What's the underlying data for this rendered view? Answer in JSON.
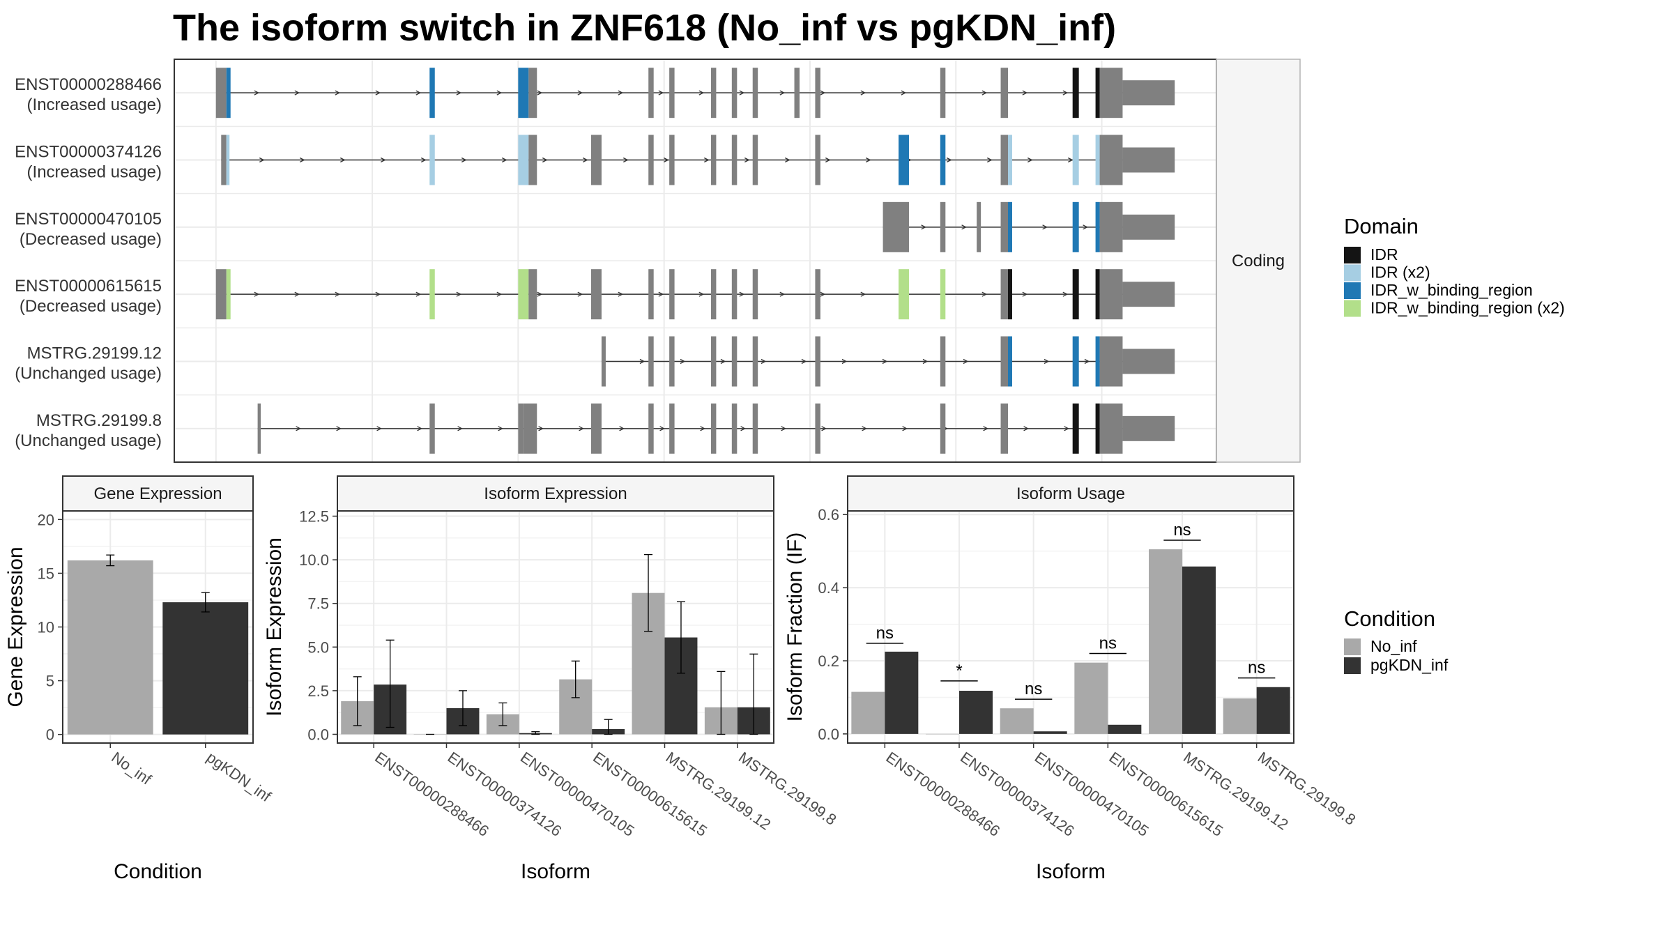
{
  "title": "The isoform switch in ZNF618 (No_inf vs pgKDN_inf)",
  "colors": {
    "exon": "#808080",
    "IDR": "#141414",
    "IDR (x2)": "#a6cee3",
    "IDR_w_binding_region": "#1f78b4",
    "IDR_w_binding_region (x2)": "#b2df8a",
    "No_inf": "#a9a9a9",
    "pgKDN_inf": "#333333",
    "grid": "#ebebeb",
    "panel_border": "#333333",
    "strip_fill": "#f5f5f5"
  },
  "structure": {
    "facet_label": "Coding",
    "legend_title": "Domain",
    "legend_items": [
      "IDR",
      "IDR (x2)",
      "IDR_w_binding_region",
      "IDR_w_binding_region (x2)"
    ],
    "x_range": [
      0,
      100
    ],
    "isoforms": [
      {
        "id": "ENST00000288466",
        "usage": "(Increased usage)",
        "span": [
          4,
          91
        ],
        "exons": [
          [
            4,
            5,
            "exon"
          ],
          [
            5,
            5.4,
            "IDR_w_binding_region"
          ],
          [
            24.5,
            25,
            "IDR_w_binding_region"
          ],
          [
            33,
            34,
            "IDR_w_binding_region"
          ],
          [
            34,
            34.8,
            "exon"
          ],
          [
            45.5,
            46,
            "exon"
          ],
          [
            47.5,
            48,
            "exon"
          ],
          [
            51.5,
            52,
            "exon"
          ],
          [
            53.5,
            54,
            "exon"
          ],
          [
            55.5,
            56,
            "exon"
          ],
          [
            59.5,
            60,
            "exon"
          ],
          [
            61.5,
            62,
            "exon"
          ],
          [
            73.5,
            74,
            "exon"
          ],
          [
            79.3,
            80,
            "exon"
          ],
          [
            86.2,
            86.8,
            "IDR"
          ],
          [
            88.4,
            88.8,
            "IDR"
          ],
          [
            88.8,
            91,
            "exon"
          ]
        ],
        "utr3": [
          91,
          96
        ]
      },
      {
        "id": "ENST00000374126",
        "usage": "(Increased usage)",
        "span": [
          4.5,
          91
        ],
        "exons": [
          [
            4.5,
            5,
            "exon"
          ],
          [
            5,
            5.3,
            "IDR (x2)"
          ],
          [
            24.5,
            25,
            "IDR (x2)"
          ],
          [
            33,
            34,
            "IDR (x2)"
          ],
          [
            34,
            34.8,
            "exon"
          ],
          [
            40,
            41,
            "exon"
          ],
          [
            45.5,
            46,
            "exon"
          ],
          [
            47.5,
            48,
            "exon"
          ],
          [
            51.5,
            52,
            "exon"
          ],
          [
            53.5,
            54,
            "exon"
          ],
          [
            55.5,
            56,
            "exon"
          ],
          [
            61.5,
            62,
            "exon"
          ],
          [
            69.5,
            70.5,
            "IDR_w_binding_region"
          ],
          [
            73.5,
            74,
            "IDR_w_binding_region"
          ],
          [
            79.3,
            80,
            "exon"
          ],
          [
            80,
            80.4,
            "IDR (x2)"
          ],
          [
            86.2,
            86.8,
            "IDR (x2)"
          ],
          [
            88.4,
            88.8,
            "IDR (x2)"
          ],
          [
            88.8,
            91,
            "exon"
          ]
        ],
        "utr3": [
          91,
          96
        ]
      },
      {
        "id": "ENST00000470105",
        "usage": "(Decreased usage)",
        "span": [
          68,
          91
        ],
        "exons": [
          [
            68,
            70.5,
            "exon"
          ],
          [
            73.5,
            74,
            "exon"
          ],
          [
            77,
            77.4,
            "exon"
          ],
          [
            79.3,
            80,
            "exon"
          ],
          [
            80,
            80.4,
            "IDR_w_binding_region"
          ],
          [
            86.2,
            86.8,
            "IDR_w_binding_region"
          ],
          [
            88.4,
            88.8,
            "IDR_w_binding_region"
          ],
          [
            88.8,
            91,
            "exon"
          ]
        ],
        "utr3": [
          91,
          96
        ]
      },
      {
        "id": "ENST00000615615",
        "usage": "(Decreased usage)",
        "span": [
          4,
          91
        ],
        "exons": [
          [
            4,
            5,
            "exon"
          ],
          [
            5,
            5.4,
            "IDR_w_binding_region (x2)"
          ],
          [
            24.5,
            25,
            "IDR_w_binding_region (x2)"
          ],
          [
            33,
            34,
            "IDR_w_binding_region (x2)"
          ],
          [
            34,
            34.8,
            "exon"
          ],
          [
            40,
            41,
            "exon"
          ],
          [
            45.5,
            46,
            "exon"
          ],
          [
            47.5,
            48,
            "exon"
          ],
          [
            51.5,
            52,
            "exon"
          ],
          [
            53.5,
            54,
            "exon"
          ],
          [
            55.5,
            56,
            "exon"
          ],
          [
            61.5,
            62,
            "exon"
          ],
          [
            69.5,
            70.5,
            "IDR_w_binding_region (x2)"
          ],
          [
            73.5,
            74,
            "IDR_w_binding_region (x2)"
          ],
          [
            79.3,
            80,
            "exon"
          ],
          [
            80,
            80.4,
            "IDR"
          ],
          [
            86.2,
            86.8,
            "IDR"
          ],
          [
            88.4,
            88.8,
            "IDR"
          ],
          [
            88.8,
            91,
            "exon"
          ]
        ],
        "utr3": [
          91,
          96
        ]
      },
      {
        "id": "MSTRG.29199.12",
        "usage": "(Unchanged usage)",
        "span": [
          41,
          91
        ],
        "exons": [
          [
            41,
            41.4,
            "exon"
          ],
          [
            45.5,
            46,
            "exon"
          ],
          [
            47.5,
            48,
            "exon"
          ],
          [
            51.5,
            52,
            "exon"
          ],
          [
            53.5,
            54,
            "exon"
          ],
          [
            55.5,
            56,
            "exon"
          ],
          [
            61.5,
            62,
            "exon"
          ],
          [
            73.5,
            74,
            "exon"
          ],
          [
            79.3,
            80,
            "exon"
          ],
          [
            80,
            80.4,
            "IDR_w_binding_region"
          ],
          [
            86.2,
            86.8,
            "IDR_w_binding_region"
          ],
          [
            88.4,
            88.8,
            "IDR_w_binding_region"
          ],
          [
            88.8,
            91,
            "exon"
          ]
        ],
        "utr3": [
          91,
          96
        ]
      },
      {
        "id": "MSTRG.29199.8",
        "usage": "(Unchanged usage)",
        "span": [
          8,
          91
        ],
        "exons": [
          [
            8,
            8.3,
            "exon"
          ],
          [
            24.5,
            25,
            "exon"
          ],
          [
            33,
            33.5,
            "exon"
          ],
          [
            33.5,
            34.8,
            "exon"
          ],
          [
            40,
            41,
            "exon"
          ],
          [
            45.5,
            46,
            "exon"
          ],
          [
            47.5,
            48,
            "exon"
          ],
          [
            51.5,
            52,
            "exon"
          ],
          [
            53.5,
            54,
            "exon"
          ],
          [
            55.5,
            56,
            "exon"
          ],
          [
            61.5,
            62,
            "exon"
          ],
          [
            73.5,
            74,
            "exon"
          ],
          [
            79.3,
            80,
            "exon"
          ],
          [
            86.2,
            86.8,
            "IDR"
          ],
          [
            88.4,
            88.8,
            "IDR"
          ],
          [
            88.8,
            91,
            "exon"
          ]
        ],
        "utr3": [
          91,
          96
        ]
      }
    ]
  },
  "chart_data": [
    {
      "type": "bar",
      "title": "Gene Expression",
      "xlabel": "Condition",
      "ylabel": "Gene Expression",
      "categories": [
        "No_inf",
        "pgKDN_inf"
      ],
      "values": [
        16.2,
        12.3
      ],
      "error": [
        [
          15.7,
          16.7
        ],
        [
          11.4,
          13.2
        ]
      ],
      "ylim": [
        -0.8,
        20.8
      ],
      "yticks": [
        0,
        5,
        10,
        15,
        20
      ],
      "ytick_labels": [
        "0",
        "5",
        "10",
        "15",
        "20"
      ]
    },
    {
      "type": "bar",
      "title": "Isoform Expression",
      "xlabel": "Isoform",
      "ylabel": "Isoform Expression",
      "categories": [
        "ENST00000288466",
        "ENST00000374126",
        "ENST00000470105",
        "ENST00000615615",
        "MSTRG.29199.12",
        "MSTRG.29199.8"
      ],
      "series": [
        {
          "name": "No_inf",
          "values": [
            1.9,
            0.0,
            1.15,
            3.15,
            8.1,
            1.55
          ],
          "error": [
            [
              0.5,
              3.3
            ],
            [
              0.0,
              0.0
            ],
            [
              0.5,
              1.8
            ],
            [
              2.1,
              4.2
            ],
            [
              5.9,
              10.3
            ],
            [
              0.0,
              3.6
            ]
          ]
        },
        {
          "name": "pgKDN_inf",
          "values": [
            2.85,
            1.5,
            0.07,
            0.3,
            5.55,
            1.55
          ],
          "error": [
            [
              0.4,
              5.4
            ],
            [
              0.5,
              2.5
            ],
            [
              0.0,
              0.15
            ],
            [
              0.0,
              0.85
            ],
            [
              3.5,
              7.6
            ],
            [
              0.0,
              4.6
            ]
          ]
        }
      ],
      "ylim": [
        -0.5,
        12.8
      ],
      "yticks": [
        0,
        2.5,
        5,
        7.5,
        10,
        12.5
      ],
      "ytick_labels": [
        "0.0",
        "2.5",
        "5.0",
        "7.5",
        "10.0",
        "12.5"
      ]
    },
    {
      "type": "bar",
      "title": "Isoform Usage",
      "xlabel": "Isoform",
      "ylabel": "Isoform Fraction (IF)",
      "categories": [
        "ENST00000288466",
        "ENST00000374126",
        "ENST00000470105",
        "ENST00000615615",
        "MSTRG.29199.12",
        "MSTRG.29199.8"
      ],
      "series": [
        {
          "name": "No_inf",
          "values": [
            0.115,
            0.0,
            0.07,
            0.195,
            0.505,
            0.097
          ]
        },
        {
          "name": "pgKDN_inf",
          "values": [
            0.225,
            0.118,
            0.007,
            0.025,
            0.458,
            0.128
          ]
        }
      ],
      "significance": [
        {
          "label": "ns",
          "y": 0.248
        },
        {
          "label": "*",
          "y": 0.145
        },
        {
          "label": "ns",
          "y": 0.095
        },
        {
          "label": "ns",
          "y": 0.22
        },
        {
          "label": "ns",
          "y": 0.53
        },
        {
          "label": "ns",
          "y": 0.153
        }
      ],
      "ylim": [
        -0.025,
        0.61
      ],
      "yticks": [
        0,
        0.2,
        0.4,
        0.6
      ],
      "ytick_labels": [
        "0.0",
        "0.2",
        "0.4",
        "0.6"
      ]
    }
  ],
  "condition_legend": {
    "title": "Condition",
    "items": [
      "No_inf",
      "pgKDN_inf"
    ]
  }
}
